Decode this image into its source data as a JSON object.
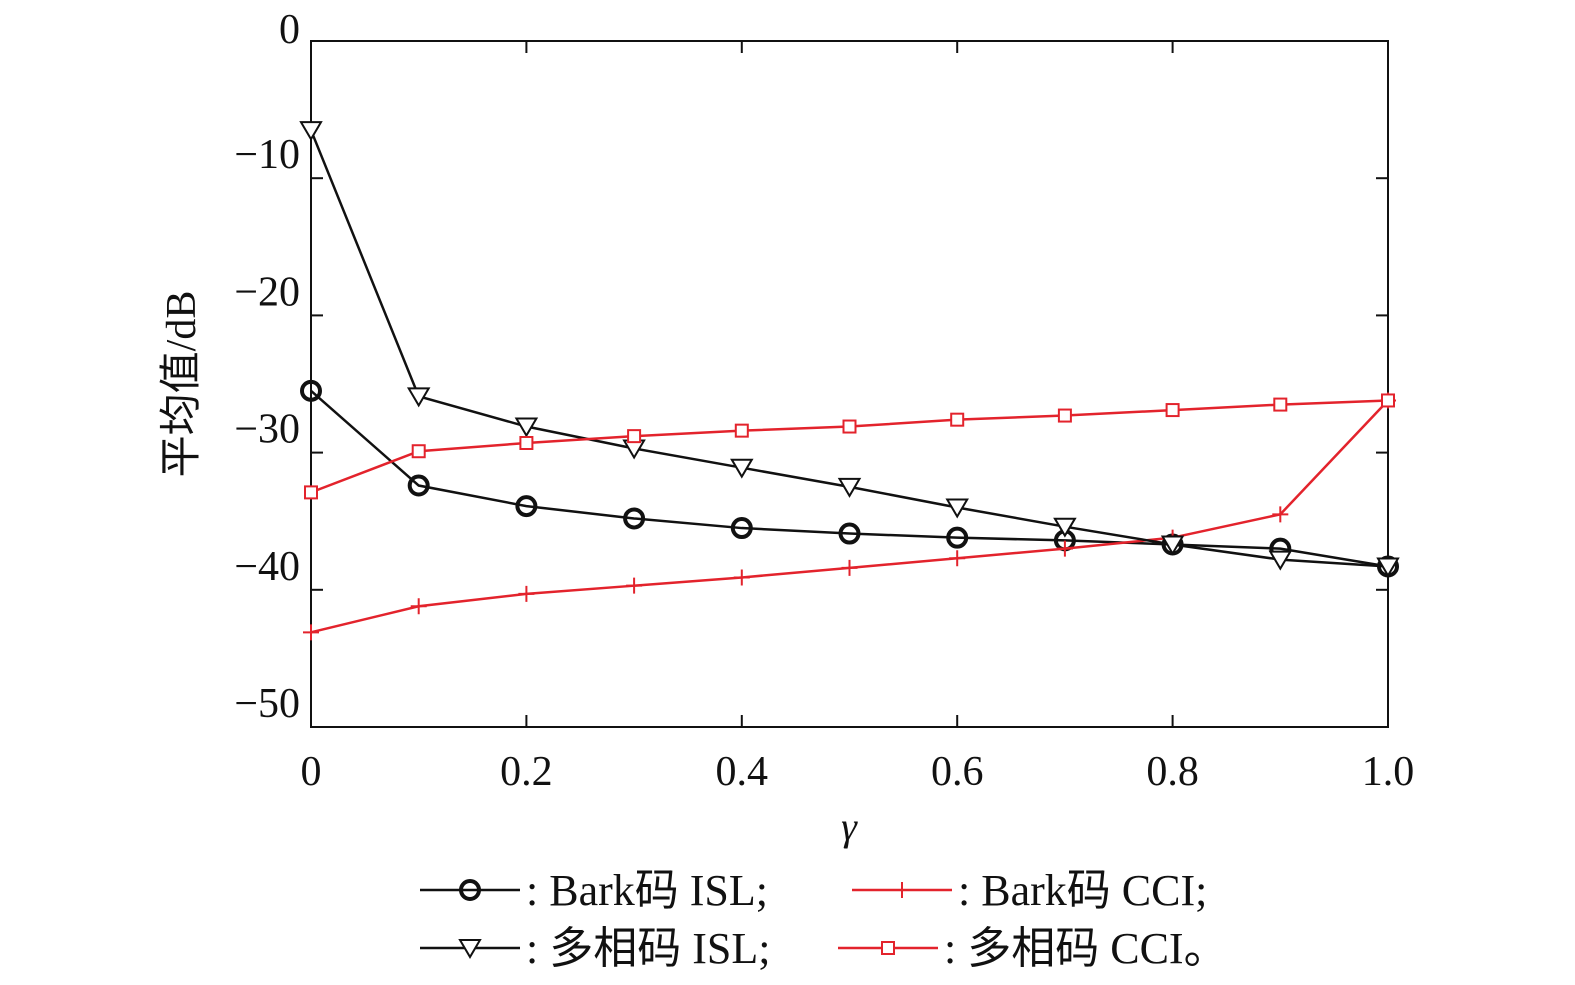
{
  "chart_data": {
    "type": "line",
    "title": "",
    "xlabel": "γ",
    "ylabel": "平均值/dB",
    "xlim": [
      0,
      1.0
    ],
    "ylim": [
      -50,
      0
    ],
    "x": [
      0,
      0.1,
      0.2,
      0.3,
      0.4,
      0.5,
      0.6,
      0.7,
      0.8,
      0.9,
      1.0
    ],
    "xticks": [
      0,
      0.2,
      0.4,
      0.6,
      0.8,
      1.0
    ],
    "xtick_labels": [
      "0",
      "0.2",
      "0.4",
      "0.6",
      "0.8",
      "1.0"
    ],
    "yticks": [
      0,
      -10,
      -20,
      -30,
      -40,
      -50
    ],
    "ytick_labels": [
      "0",
      "−10",
      "−20",
      "−30",
      "−40",
      "−50"
    ],
    "grid": false,
    "legend_placement": "bottom",
    "series": [
      {
        "name": ": Bark码 ISL;",
        "color": "#111111",
        "marker": "circle",
        "values": [
          -25.5,
          -32.4,
          -33.9,
          -34.8,
          -35.5,
          -35.9,
          -36.2,
          -36.4,
          -36.7,
          -37.0,
          -38.3
        ]
      },
      {
        "name": ": Bark码 CCI;",
        "color": "#e3232c",
        "marker": "plus",
        "values": [
          -43.1,
          -41.2,
          -40.3,
          -39.7,
          -39.1,
          -38.4,
          -37.7,
          -37.0,
          -36.2,
          -34.5,
          -26.2
        ]
      },
      {
        "name": ": 多相码 ISL;",
        "color": "#111111",
        "marker": "triangle-down",
        "values": [
          -6.5,
          -25.9,
          -28.1,
          -29.7,
          -31.1,
          -32.5,
          -34.0,
          -35.4,
          -36.7,
          -37.8,
          -38.3
        ]
      },
      {
        "name": ": 多相码 CCI。",
        "color": "#e3232c",
        "marker": "square",
        "values": [
          -32.9,
          -29.9,
          -29.3,
          -28.8,
          -28.4,
          -28.1,
          -27.6,
          -27.3,
          -26.9,
          -26.5,
          -26.2
        ]
      }
    ]
  }
}
